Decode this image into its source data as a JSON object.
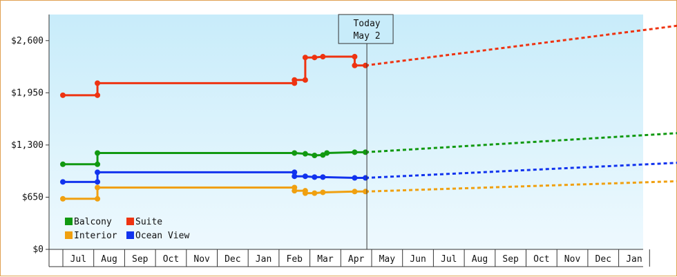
{
  "chart_data": {
    "type": "line",
    "title": "",
    "xlabel": "",
    "ylabel": "",
    "ylim": [
      0,
      2925
    ],
    "y_ticks": [
      "$0",
      "$650",
      "$1,300",
      "$1,950",
      "$2,600"
    ],
    "y_tick_values": [
      0,
      650,
      1300,
      1950,
      2600
    ],
    "x_months": [
      "Jul",
      "Aug",
      "Sep",
      "Oct",
      "Nov",
      "Dec",
      "Jan",
      "Feb",
      "Mar",
      "Apr",
      "May",
      "Jun",
      "Jul",
      "Aug",
      "Sep",
      "Oct",
      "Nov",
      "Dec",
      "Jan"
    ],
    "today": {
      "label": "Today",
      "date": "May 2"
    },
    "legend": {
      "placement": "bottom-left"
    },
    "grid": false,
    "series": [
      {
        "name": "Balcony",
        "color": "#119911",
        "points": [
          [
            -0.5,
            1060
          ],
          [
            0.62,
            1060
          ],
          [
            0.62,
            1200
          ],
          [
            7.0,
            1200
          ],
          [
            7.35,
            1190
          ],
          [
            7.65,
            1170
          ],
          [
            7.92,
            1175
          ],
          [
            8.05,
            1200
          ],
          [
            8.95,
            1210
          ],
          [
            9.3,
            1210
          ]
        ],
        "forecast": [
          [
            9.3,
            1210
          ],
          [
            19.5,
            1450
          ]
        ]
      },
      {
        "name": "Suite",
        "color": "#ee3311",
        "points": [
          [
            -0.5,
            1920
          ],
          [
            0.62,
            1920
          ],
          [
            0.62,
            2070
          ],
          [
            7.0,
            2070
          ],
          [
            7.0,
            2110
          ],
          [
            7.35,
            2110
          ],
          [
            7.35,
            2390
          ],
          [
            7.65,
            2390
          ],
          [
            7.92,
            2400
          ],
          [
            8.95,
            2400
          ],
          [
            8.95,
            2290
          ],
          [
            9.3,
            2290
          ]
        ],
        "forecast": [
          [
            9.3,
            2290
          ],
          [
            19.5,
            2790
          ]
        ]
      },
      {
        "name": "Interior",
        "color": "#f0a010",
        "points": [
          [
            -0.5,
            630
          ],
          [
            0.62,
            630
          ],
          [
            0.62,
            770
          ],
          [
            7.0,
            770
          ],
          [
            7.0,
            730
          ],
          [
            7.35,
            730
          ],
          [
            7.35,
            700
          ],
          [
            7.65,
            700
          ],
          [
            7.92,
            710
          ],
          [
            8.95,
            720
          ],
          [
            9.3,
            720
          ]
        ],
        "forecast": [
          [
            9.3,
            720
          ],
          [
            19.5,
            850
          ]
        ]
      },
      {
        "name": "Ocean View",
        "color": "#1133ee",
        "points": [
          [
            -0.5,
            840
          ],
          [
            0.62,
            840
          ],
          [
            0.62,
            960
          ],
          [
            7.0,
            960
          ],
          [
            7.0,
            910
          ],
          [
            7.35,
            910
          ],
          [
            7.65,
            900
          ],
          [
            7.92,
            900
          ],
          [
            8.95,
            890
          ],
          [
            9.3,
            890
          ]
        ],
        "forecast": [
          [
            9.3,
            890
          ],
          [
            19.5,
            1080
          ]
        ]
      }
    ]
  }
}
